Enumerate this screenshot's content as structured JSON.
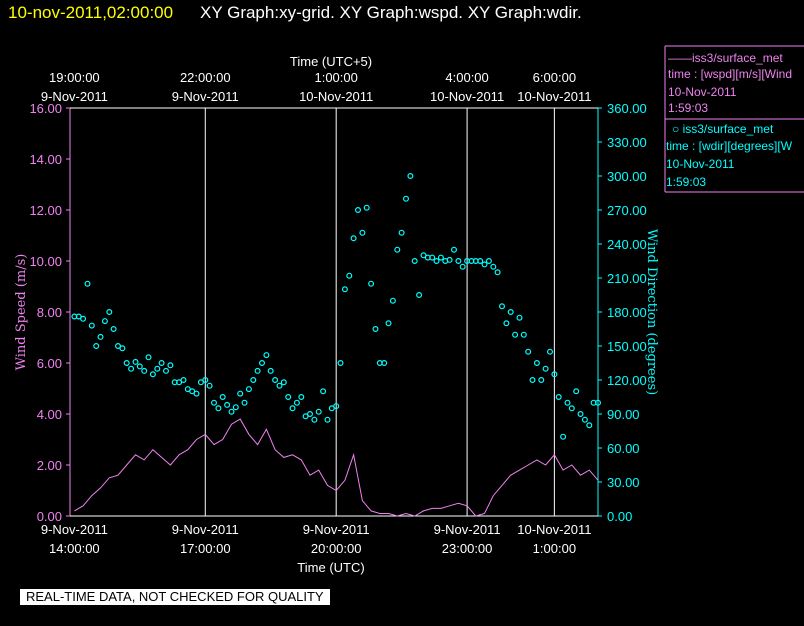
{
  "header": {
    "date": "10-nov-2011,02:00:00",
    "graphs": "XY Graph:xy-grid.  XY Graph:wspd.  XY Graph:wdir."
  },
  "colors": {
    "background": "#000000",
    "wspd": "#ee82ee",
    "wdir": "#00ffff",
    "date": "#ffff00",
    "grid": "#ffffff"
  },
  "banner": "REAL-TIME DATA, NOT CHECKED FOR QUALITY",
  "legend": [
    {
      "line1": "——iss3/surface_met",
      "line2": "time : [wspd][m/s][Wind",
      "line3": "10-Nov-2011",
      "line4": "1:59:03",
      "color": "#ee82ee"
    },
    {
      "line1": "○ iss3/surface_met",
      "line2": "time : [wdir][degrees][W",
      "line3": "10-Nov-2011",
      "line4": "1:59:03",
      "color": "#00ffff"
    }
  ],
  "chart_data": {
    "type": "line",
    "xlabel_bottom": "Time (UTC)",
    "xlabel_top": "Time (UTC+5)",
    "ylabel_left": "Wind Speed (m/s)",
    "ylabel_right": "Wind Direction (degrees)",
    "xlim": [
      13.9,
      26.0
    ],
    "ylim_left": [
      0,
      16
    ],
    "ylim_right": [
      0,
      360
    ],
    "bottom_ticks": [
      {
        "x": 14,
        "date": "9-Nov-2011",
        "time": "14:00:00"
      },
      {
        "x": 17,
        "date": "9-Nov-2011",
        "time": "17:00:00"
      },
      {
        "x": 20,
        "date": "9-Nov-2011",
        "time": "20:00:00"
      },
      {
        "x": 23,
        "date": "9-Nov-2011",
        "time": "23:00:00"
      },
      {
        "x": 25,
        "date": "10-Nov-2011",
        "time": "1:00:00"
      }
    ],
    "top_ticks": [
      {
        "x": 14,
        "time": "19:00:00",
        "date": "9-Nov-2011"
      },
      {
        "x": 17,
        "time": "22:00:00",
        "date": "9-Nov-2011"
      },
      {
        "x": 20,
        "time": "1:00:00",
        "date": "10-Nov-2011"
      },
      {
        "x": 23,
        "time": "4:00:00",
        "date": "10-Nov-2011"
      },
      {
        "x": 25,
        "time": "6:00:00",
        "date": "10-Nov-2011"
      }
    ],
    "left_ticks": [
      "0.00",
      "2.00",
      "4.00",
      "6.00",
      "8.00",
      "10.00",
      "12.00",
      "14.00",
      "16.00"
    ],
    "right_ticks": [
      "0.00",
      "30.00",
      "60.00",
      "90.00",
      "120.00",
      "150.00",
      "180.00",
      "210.00",
      "240.00",
      "270.00",
      "300.00",
      "330.00",
      "360.00"
    ],
    "grid": "vertical lines at bottom ticks",
    "series": [
      {
        "name": "iss3/surface_met",
        "axis": "left",
        "style": "line",
        "x": [
          14.0,
          14.2,
          14.4,
          14.6,
          14.8,
          15.0,
          15.2,
          15.4,
          15.6,
          15.8,
          16.0,
          16.2,
          16.4,
          16.6,
          16.8,
          17.0,
          17.2,
          17.4,
          17.6,
          17.8,
          18.0,
          18.2,
          18.4,
          18.6,
          18.8,
          19.0,
          19.2,
          19.4,
          19.6,
          19.8,
          20.0,
          20.2,
          20.4,
          20.6,
          20.8,
          21.0,
          21.2,
          21.4,
          21.6,
          21.8,
          22.0,
          22.2,
          22.4,
          22.6,
          22.8,
          23.0,
          23.2,
          23.4,
          23.6,
          23.8,
          24.0,
          24.2,
          24.4,
          24.6,
          24.8,
          25.0,
          25.2,
          25.4,
          25.6,
          25.8,
          26.0
        ],
        "y": [
          0.2,
          0.4,
          0.8,
          1.1,
          1.5,
          1.6,
          2.0,
          2.4,
          2.2,
          2.6,
          2.3,
          2.0,
          2.4,
          2.6,
          3.0,
          3.2,
          2.8,
          3.0,
          3.6,
          3.8,
          3.2,
          2.8,
          3.4,
          2.6,
          2.3,
          2.4,
          2.2,
          1.6,
          1.8,
          1.2,
          1.0,
          1.4,
          2.4,
          0.6,
          0.2,
          0.1,
          0.1,
          0.0,
          0.1,
          0.0,
          0.2,
          0.3,
          0.3,
          0.4,
          0.5,
          0.4,
          0.0,
          0.1,
          0.8,
          1.2,
          1.6,
          1.8,
          2.0,
          2.2,
          2.0,
          2.4,
          1.8,
          2.0,
          1.6,
          1.8,
          1.4
        ]
      },
      {
        "name": "iss3/surface_met",
        "axis": "right",
        "style": "scatter",
        "x": [
          14.0,
          14.1,
          14.2,
          14.3,
          14.4,
          14.5,
          14.6,
          14.7,
          14.8,
          14.9,
          15.0,
          15.1,
          15.2,
          15.3,
          15.4,
          15.5,
          15.6,
          15.7,
          15.8,
          15.9,
          16.0,
          16.1,
          16.2,
          16.3,
          16.4,
          16.5,
          16.6,
          16.7,
          16.8,
          16.9,
          17.0,
          17.1,
          17.2,
          17.3,
          17.4,
          17.5,
          17.6,
          17.7,
          17.8,
          17.9,
          18.0,
          18.1,
          18.2,
          18.3,
          18.4,
          18.5,
          18.6,
          18.7,
          18.8,
          18.9,
          19.0,
          19.1,
          19.2,
          19.3,
          19.4,
          19.5,
          19.6,
          19.7,
          19.8,
          19.9,
          20.0,
          20.1,
          20.2,
          20.3,
          20.4,
          20.5,
          20.6,
          20.7,
          20.8,
          20.9,
          21.0,
          21.1,
          21.2,
          21.3,
          21.4,
          21.5,
          21.6,
          21.7,
          21.8,
          21.9,
          22.0,
          22.1,
          22.2,
          22.3,
          22.4,
          22.5,
          22.6,
          22.7,
          22.8,
          22.9,
          23.0,
          23.1,
          23.2,
          23.3,
          23.4,
          23.5,
          23.6,
          23.7,
          23.8,
          23.9,
          24.0,
          24.1,
          24.2,
          24.3,
          24.4,
          24.5,
          24.6,
          24.7,
          24.8,
          24.9,
          25.0,
          25.1,
          25.2,
          25.3,
          25.4,
          25.5,
          25.6,
          25.7,
          25.8,
          25.9,
          26.0
        ],
        "y": [
          176,
          176,
          174,
          205,
          168,
          150,
          158,
          172,
          180,
          165,
          150,
          148,
          135,
          130,
          136,
          132,
          128,
          140,
          125,
          130,
          135,
          128,
          133,
          118,
          118,
          120,
          112,
          110,
          108,
          118,
          120,
          115,
          100,
          95,
          105,
          98,
          92,
          96,
          108,
          100,
          112,
          120,
          128,
          135,
          142,
          128,
          120,
          115,
          118,
          105,
          95,
          100,
          105,
          88,
          90,
          85,
          92,
          110,
          85,
          95,
          97,
          135,
          200,
          212,
          245,
          270,
          250,
          272,
          205,
          165,
          135,
          135,
          170,
          190,
          235,
          250,
          280,
          300,
          225,
          195,
          230,
          228,
          228,
          225,
          228,
          225,
          226,
          235,
          225,
          220,
          225,
          225,
          225,
          225,
          222,
          225,
          220,
          215,
          185,
          170,
          180,
          160,
          175,
          160,
          145,
          120,
          135,
          120,
          130,
          145,
          125,
          105,
          70,
          100,
          95,
          110,
          90,
          85,
          80,
          100,
          100
        ]
      }
    ]
  }
}
